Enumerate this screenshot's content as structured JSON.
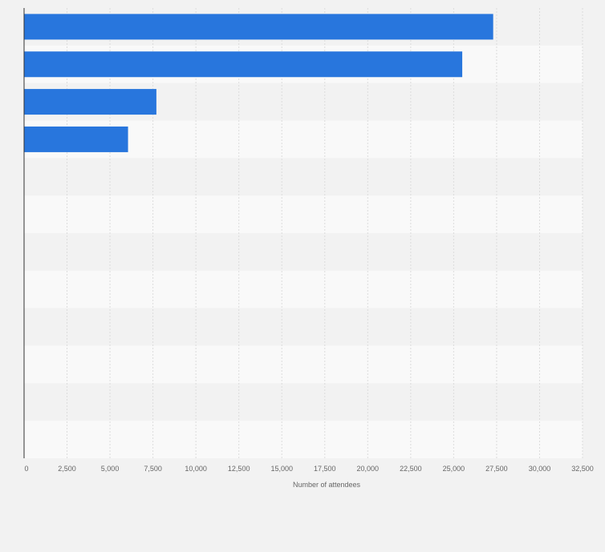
{
  "chart_data": {
    "type": "bar",
    "orientation": "horizontal",
    "categories": [
      "",
      "",
      "",
      "",
      "",
      "",
      "",
      "",
      "",
      "",
      "",
      ""
    ],
    "values": [
      27300,
      25500,
      7700,
      6050,
      null,
      null,
      null,
      null,
      null,
      null,
      null,
      null
    ],
    "title": "",
    "xlabel": "Number of attendees",
    "ylabel": "",
    "xlim": [
      0,
      32500
    ],
    "xticks": [
      0,
      2500,
      5000,
      7500,
      10000,
      12500,
      15000,
      17500,
      20000,
      22500,
      25000,
      27500,
      30000,
      32500
    ],
    "xtick_labels": [
      "0",
      "2,500",
      "5,000",
      "7,500",
      "10,000",
      "12,500",
      "15,000",
      "17,500",
      "20,000",
      "22,500",
      "25,000",
      "27,500",
      "30,000",
      "32,500"
    ],
    "grid": true,
    "legend": "none",
    "bar_color": "#2876dd",
    "band_colors": [
      "#f2f2f2",
      "#f9f9f9"
    ],
    "grid_color": "#dcdcdc",
    "axis_color": "#333333"
  }
}
